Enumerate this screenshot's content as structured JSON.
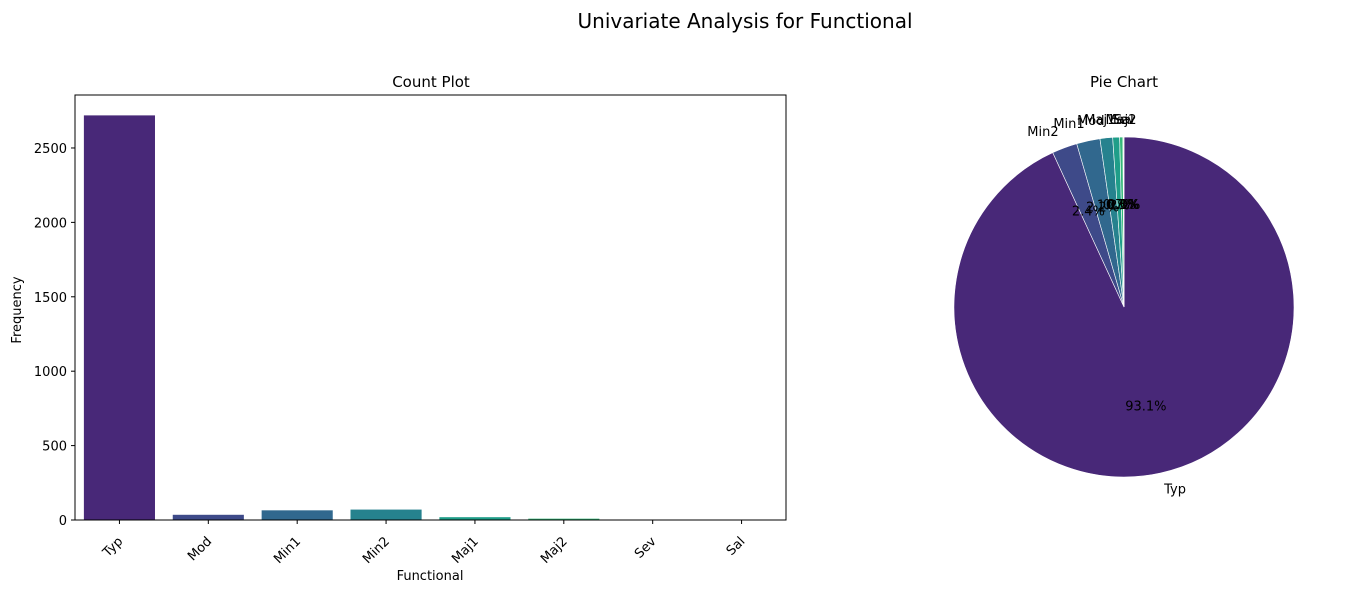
{
  "figure": {
    "title": "Univariate Analysis for Functional"
  },
  "chart_data": [
    {
      "type": "bar",
      "title": "Count Plot",
      "xlabel": "Functional",
      "ylabel": "Frequency",
      "categories": [
        "Typ",
        "Mod",
        "Min1",
        "Min2",
        "Maj1",
        "Maj2",
        "Sev",
        "Sal"
      ],
      "values": [
        2719,
        35,
        65,
        70,
        19,
        9,
        2,
        1
      ],
      "ylim": [
        0,
        2856
      ],
      "yticks": [
        0,
        500,
        1000,
        1500,
        2000,
        2500
      ],
      "colors": [
        "#482878",
        "#3e4a89",
        "#31688e",
        "#26828e",
        "#1f9e89",
        "#35b779",
        "#6ece58",
        "#b5de2b"
      ],
      "grid": false
    },
    {
      "type": "pie",
      "title": "Pie Chart",
      "labels": [
        "Typ",
        "Min2",
        "Min1",
        "Mod",
        "Maj1",
        "Maj2",
        "Sev",
        "Sal"
      ],
      "values": [
        2719,
        70,
        65,
        35,
        19,
        9,
        2,
        1
      ],
      "percent_labels": [
        "93.1%",
        "2.4%",
        "2.2%",
        "1.2%",
        "0.7%",
        "0.3%",
        "0.1%",
        "0.0%"
      ],
      "colors": [
        "#482878",
        "#3e4a89",
        "#31688e",
        "#26828e",
        "#1f9e89",
        "#35b779",
        "#6ece58",
        "#b5de2b"
      ],
      "start_angle": 90,
      "direction": "clockwise"
    }
  ]
}
